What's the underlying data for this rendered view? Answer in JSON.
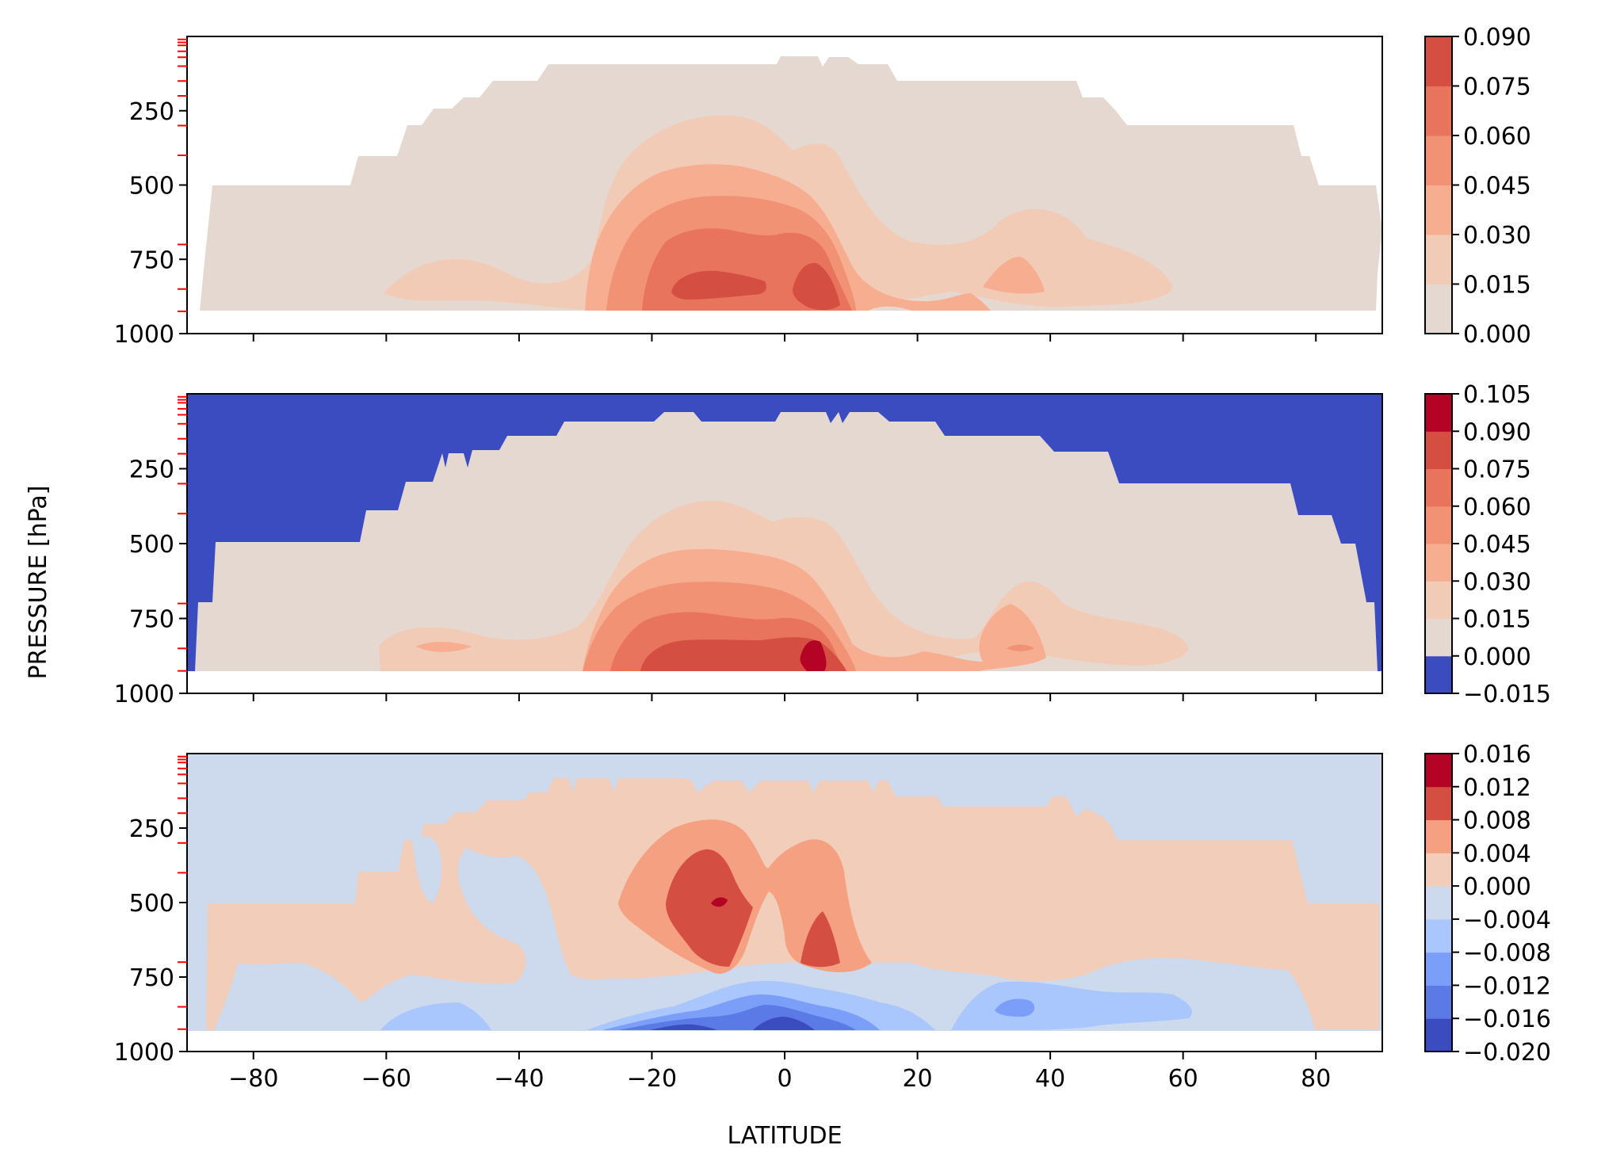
{
  "figure": {
    "ylabel": "PRESSURE [hPa]",
    "xlabel": "LATITUDE"
  },
  "chart_data": [
    {
      "type": "heatmap",
      "panel": "top",
      "x_range": [
        -90,
        90
      ],
      "y_range": [
        1000,
        0
      ],
      "y_inverted": true,
      "x_ticks": [
        -80,
        -60,
        -40,
        -20,
        0,
        20,
        40,
        60,
        80
      ],
      "x_tick_labels_shown": false,
      "y_ticks": [
        250,
        500,
        750,
        1000
      ],
      "y_tick_labels": [
        "250",
        "500",
        "750",
        "1000"
      ],
      "minor_pressure_ticks_red": [
        10,
        20,
        30,
        50,
        70,
        100,
        150,
        200,
        300,
        400,
        700,
        850,
        925
      ],
      "colorbar": {
        "levels": [
          0.0,
          0.015,
          0.03,
          0.045,
          0.06,
          0.075,
          0.09
        ],
        "labels": [
          "0.000",
          "0.015",
          "0.030",
          "0.045",
          "0.060",
          "0.075",
          "0.090"
        ],
        "colors": [
          "#e5d8d1",
          "#f2cbb7",
          "#f7ad90",
          "#f29274",
          "#e7745b",
          "#d44e41"
        ]
      }
    },
    {
      "type": "heatmap",
      "panel": "middle",
      "x_range": [
        -90,
        90
      ],
      "y_range": [
        1000,
        0
      ],
      "y_inverted": true,
      "x_ticks": [
        -80,
        -60,
        -40,
        -20,
        0,
        20,
        40,
        60,
        80
      ],
      "x_tick_labels_shown": false,
      "y_ticks": [
        250,
        500,
        750,
        1000
      ],
      "y_tick_labels": [
        "250",
        "500",
        "750",
        "1000"
      ],
      "minor_pressure_ticks_red": [
        10,
        20,
        30,
        50,
        70,
        100,
        150,
        200,
        300,
        400,
        700,
        850,
        925
      ],
      "colorbar": {
        "levels": [
          -0.015,
          0.0,
          0.015,
          0.03,
          0.045,
          0.06,
          0.075,
          0.09,
          0.105
        ],
        "labels": [
          "−0.015",
          "0.000",
          "0.015",
          "0.030",
          "0.045",
          "0.060",
          "0.075",
          "0.090",
          "0.105"
        ],
        "colors": [
          "#3b4cc0",
          "#e5d8d1",
          "#f2cbb7",
          "#f7ad90",
          "#f29274",
          "#e7745b",
          "#d44e41",
          "#b40426"
        ]
      }
    },
    {
      "type": "heatmap",
      "panel": "bottom",
      "x_range": [
        -90,
        90
      ],
      "y_range": [
        1000,
        0
      ],
      "y_inverted": true,
      "x_ticks": [
        -80,
        -60,
        -40,
        -20,
        0,
        20,
        40,
        60,
        80
      ],
      "x_tick_labels": [
        "−80",
        "−60",
        "−40",
        "−20",
        "0",
        "20",
        "40",
        "60",
        "80"
      ],
      "x_tick_labels_shown": true,
      "y_ticks": [
        250,
        500,
        750,
        1000
      ],
      "y_tick_labels": [
        "250",
        "500",
        "750",
        "1000"
      ],
      "minor_pressure_ticks_red": [
        10,
        20,
        30,
        50,
        70,
        100,
        150,
        200,
        300,
        400,
        700,
        850,
        925
      ],
      "colorbar": {
        "levels": [
          -0.02,
          -0.016,
          -0.012,
          -0.008,
          -0.004,
          0.0,
          0.004,
          0.008,
          0.012,
          0.016
        ],
        "labels": [
          "−0.020",
          "−0.016",
          "−0.012",
          "−0.008",
          "−0.004",
          "0.000",
          "0.004",
          "0.008",
          "0.012",
          "0.016"
        ],
        "colors": [
          "#3b4cc0",
          "#5b7ae5",
          "#7b9ff9",
          "#aac7fd",
          "#cdd9ec",
          "#f1cdba",
          "#f5a081",
          "#d44e41",
          "#b40426"
        ]
      }
    }
  ]
}
